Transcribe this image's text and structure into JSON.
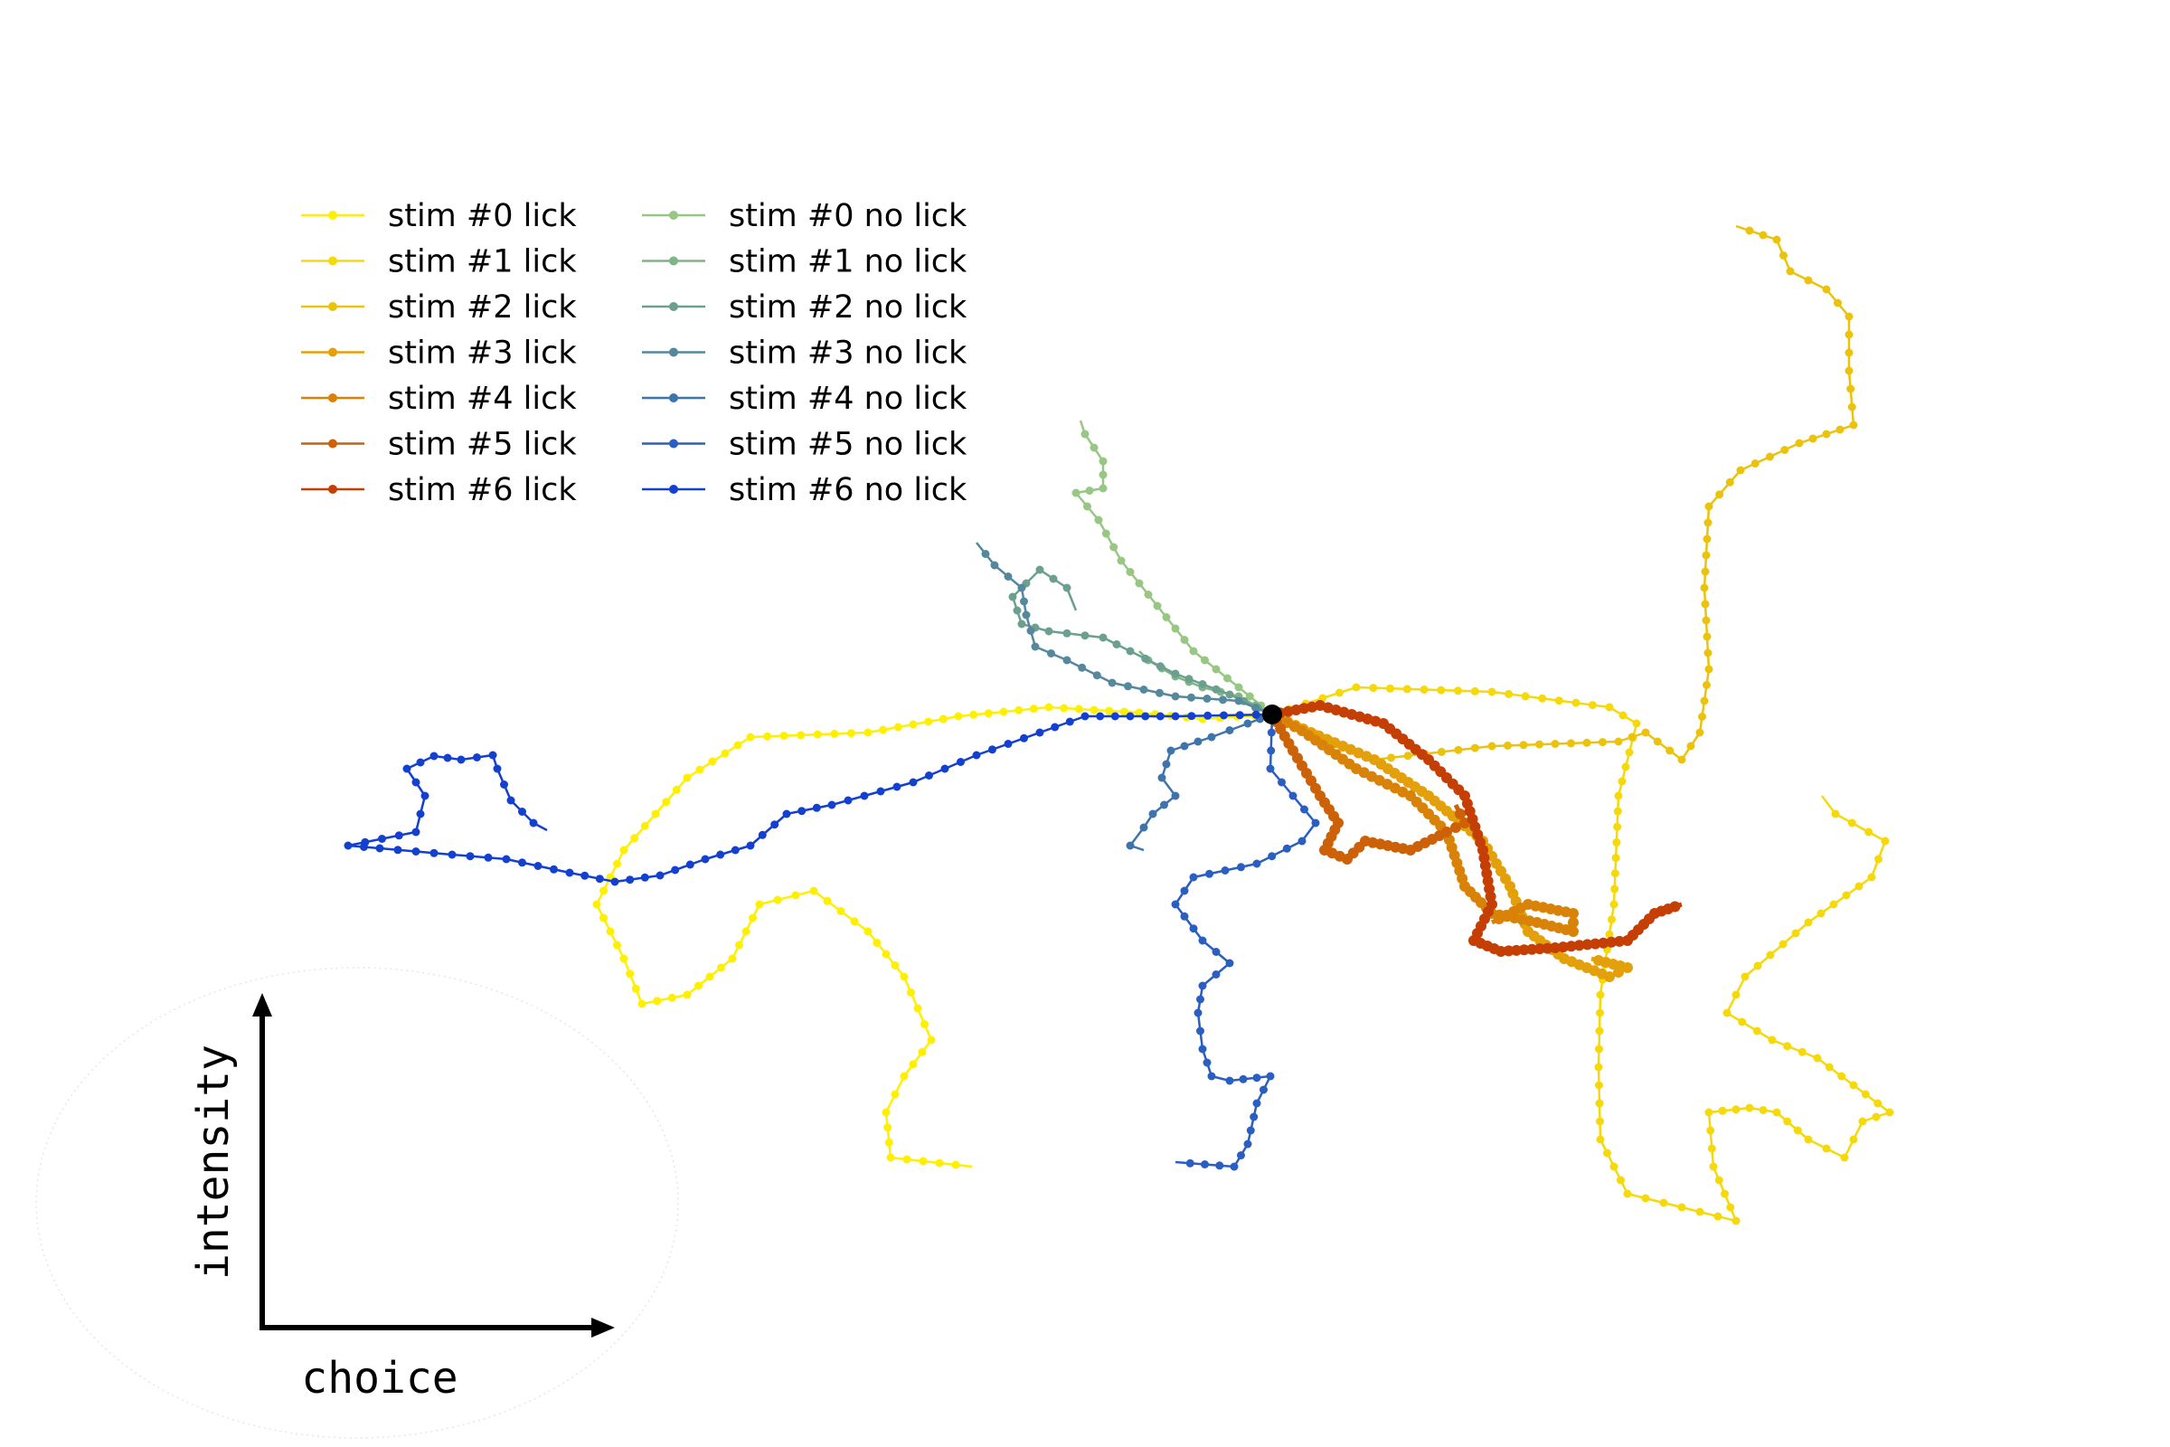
{
  "chart_data": {
    "type": "line",
    "axis_labels": {
      "x": "choice",
      "y": "intensity"
    },
    "series": [
      {
        "name": "stim #0 lick",
        "color": "#ffef00"
      },
      {
        "name": "stim #1 lick",
        "color": "#f5d90a"
      },
      {
        "name": "stim #2 lick",
        "color": "#ebc20c"
      },
      {
        "name": "stim #3 lick",
        "color": "#e3a00b"
      },
      {
        "name": "stim #4 lick",
        "color": "#d98208"
      },
      {
        "name": "stim #5 lick",
        "color": "#cc6107"
      },
      {
        "name": "stim #6 lick",
        "color": "#c53e04"
      },
      {
        "name": "stim #0 no lick",
        "color": "#97c782"
      },
      {
        "name": "stim #1 no lick",
        "color": "#7fb486"
      },
      {
        "name": "stim #2 no lick",
        "color": "#6b9f8f"
      },
      {
        "name": "stim #3 no lick",
        "color": "#55889c"
      },
      {
        "name": "stim #4 no lick",
        "color": "#3f73ac"
      },
      {
        "name": "stim #5 no lick",
        "color": "#2a5ec0"
      },
      {
        "name": "stim #6 no lick",
        "color": "#1440cf"
      }
    ],
    "origin_marker": "black-dot",
    "grid": false,
    "legend_position": "top-left"
  }
}
